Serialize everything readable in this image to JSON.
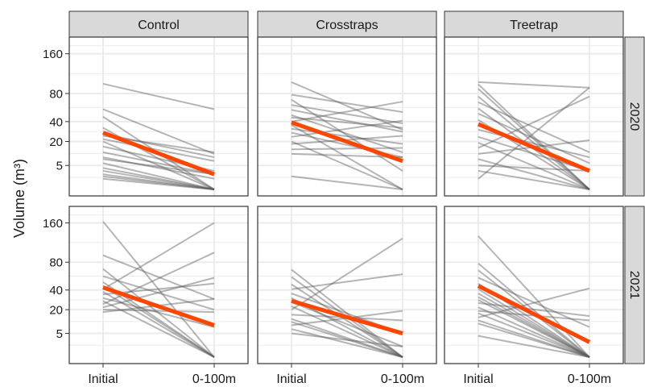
{
  "chart_data": {
    "type": "line",
    "ylabel": "Volume (m³)",
    "y_scale": "sqrt",
    "ylim": [
      0,
      200
    ],
    "y_ticks": [
      160,
      80,
      40,
      20,
      5
    ],
    "x_categories": [
      "Initial",
      "0-100m"
    ],
    "columns": [
      "Control",
      "Crosstraps",
      "Treetrap"
    ],
    "rows": [
      "2020",
      "2021"
    ],
    "colors": {
      "individual_line": "#5a5a5a",
      "mean_line": "#ff4500",
      "strip_fill": "#d9d9d9",
      "panel_background": "#ffffff",
      "grid": "#ebebeb"
    },
    "panels": [
      {
        "column": "Control",
        "row": "2020",
        "mean": [
          28,
          2
        ],
        "lines": [
          [
            97,
            56
          ],
          [
            56,
            11
          ],
          [
            46,
            0
          ],
          [
            33,
            0
          ],
          [
            27,
            9
          ],
          [
            25,
            12
          ],
          [
            22,
            7
          ],
          [
            20,
            0
          ],
          [
            16,
            3
          ],
          [
            12,
            2
          ],
          [
            9,
            1
          ],
          [
            8,
            2
          ],
          [
            6,
            0
          ],
          [
            4,
            0
          ],
          [
            3,
            0
          ],
          [
            2,
            0
          ],
          [
            1.5,
            0
          ],
          [
            1,
            0
          ]
        ]
      },
      {
        "column": "Crosstraps",
        "row": "2020",
        "mean": [
          39,
          7
        ],
        "lines": [
          [
            100,
            31
          ],
          [
            78,
            52
          ],
          [
            70,
            3
          ],
          [
            62,
            38
          ],
          [
            55,
            29
          ],
          [
            48,
            12
          ],
          [
            45,
            33
          ],
          [
            40,
            67
          ],
          [
            36,
            0
          ],
          [
            32,
            18
          ],
          [
            28,
            9
          ],
          [
            24,
            41
          ],
          [
            20,
            0
          ],
          [
            18,
            25
          ],
          [
            14,
            15
          ],
          [
            11,
            9
          ],
          [
            1.5,
            0
          ]
        ]
      },
      {
        "column": "Treetrap",
        "row": "2020",
        "mean": [
          37,
          3
        ],
        "lines": [
          [
            100,
            90
          ],
          [
            96,
            0
          ],
          [
            88,
            0
          ],
          [
            75,
            0
          ],
          [
            66,
            12
          ],
          [
            57,
            0
          ],
          [
            50,
            6
          ],
          [
            42,
            0
          ],
          [
            31,
            9
          ],
          [
            24,
            3
          ],
          [
            19,
            0
          ],
          [
            15,
            75
          ],
          [
            11,
            21
          ],
          [
            8,
            0
          ],
          [
            5,
            3
          ],
          [
            3,
            0
          ],
          [
            1,
            90
          ]
        ]
      },
      {
        "column": "Control",
        "row": "2021",
        "mean": [
          43,
          9
        ],
        "lines": [
          [
            163,
            0
          ],
          [
            92,
            30
          ],
          [
            69,
            0
          ],
          [
            58,
            20
          ],
          [
            50,
            0
          ],
          [
            45,
            0
          ],
          [
            41,
            160
          ],
          [
            38,
            0
          ],
          [
            35,
            48
          ],
          [
            31,
            8
          ],
          [
            28,
            0
          ],
          [
            25,
            97
          ],
          [
            22,
            56
          ],
          [
            20,
            18
          ],
          [
            18,
            30
          ]
        ]
      },
      {
        "column": "Crosstraps",
        "row": "2021",
        "mean": [
          28,
          5
        ],
        "lines": [
          [
            68,
            0
          ],
          [
            57,
            0
          ],
          [
            47,
            0
          ],
          [
            41,
            61
          ],
          [
            36,
            5
          ],
          [
            31,
            0
          ],
          [
            27,
            1
          ],
          [
            23,
            0
          ],
          [
            20,
            125
          ],
          [
            16,
            12
          ],
          [
            13,
            0
          ],
          [
            11,
            0
          ],
          [
            9,
            19
          ],
          [
            7,
            0
          ],
          [
            5,
            1
          ]
        ]
      },
      {
        "column": "Treetrap",
        "row": "2021",
        "mean": [
          45,
          2
        ],
        "lines": [
          [
            130,
            0
          ],
          [
            78,
            0
          ],
          [
            67,
            0
          ],
          [
            56,
            8
          ],
          [
            48,
            0
          ],
          [
            41,
            0
          ],
          [
            36,
            0
          ],
          [
            32,
            0
          ],
          [
            29,
            0
          ],
          [
            26,
            15
          ],
          [
            22,
            0
          ],
          [
            19,
            12
          ],
          [
            17,
            0
          ],
          [
            14,
            42
          ],
          [
            12,
            0
          ],
          [
            10,
            0
          ],
          [
            4,
            0
          ]
        ]
      }
    ]
  }
}
